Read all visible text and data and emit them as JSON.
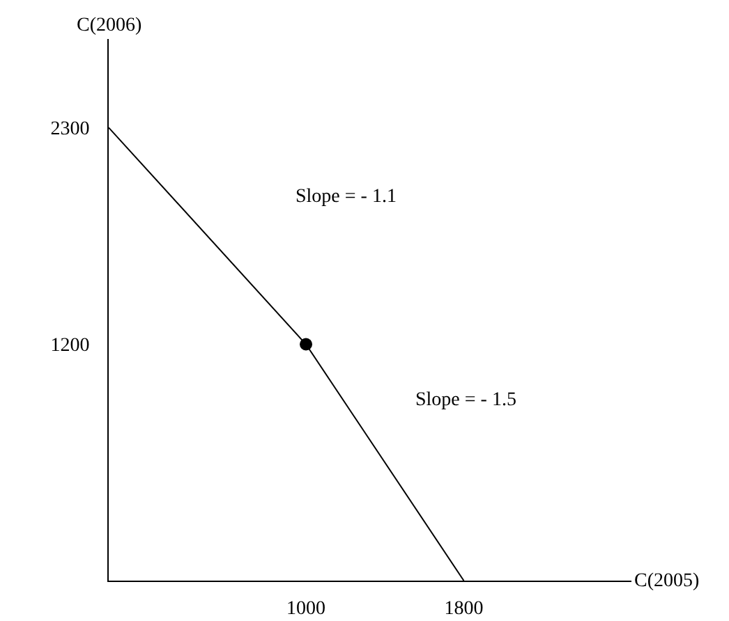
{
  "chart_data": {
    "type": "line",
    "xlabel": "C(2005)",
    "ylabel": "C(2006)",
    "xlim": [
      0,
      2650
    ],
    "ylim": [
      0,
      2750
    ],
    "xticks": [
      1000,
      1800
    ],
    "yticks": [
      1200,
      2300
    ],
    "series": [
      {
        "x": [
          0,
          1000,
          1800
        ],
        "values": [
          2300,
          1200,
          0
        ],
        "color": "#000000",
        "marker": "none"
      },
      {
        "type": "scatter",
        "x": [
          1000
        ],
        "values": [
          1200
        ],
        "color": "#000000",
        "marker": "circle"
      }
    ],
    "annotations": [
      "Slope = - 1.1",
      "Slope = - 1.5"
    ]
  }
}
